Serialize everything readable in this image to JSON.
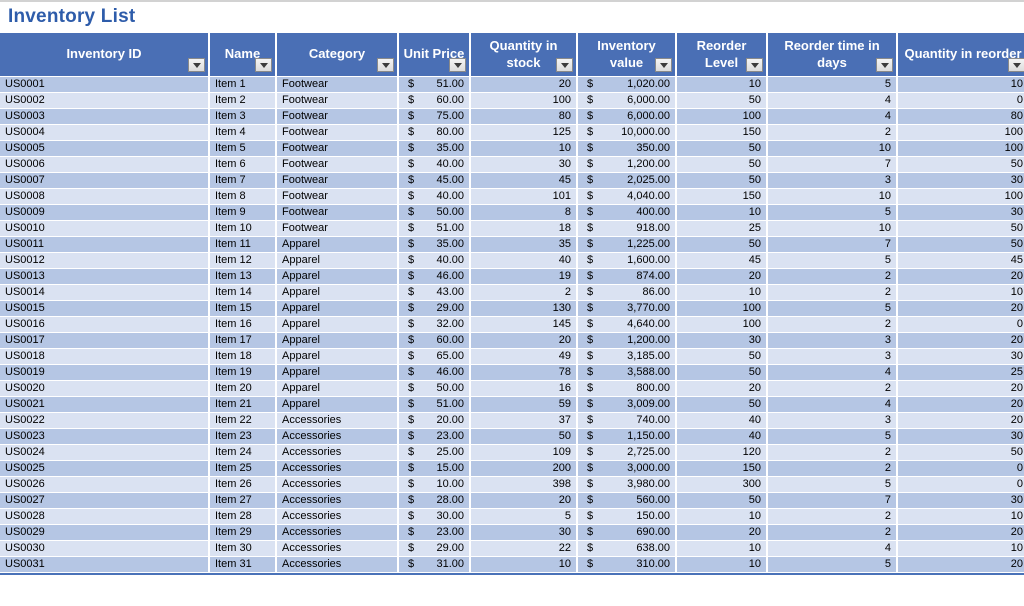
{
  "page": {
    "title": "Inventory List"
  },
  "colors": {
    "title_text": "#2E5CAA",
    "header_bg": "#4A6FB5",
    "band_dark": "#B5C6E4",
    "band_light": "#DAE2F2",
    "table_bottom_border": "#4A72B8",
    "flag_marker": "#C00000"
  },
  "icons": {
    "filter_dropdown": "chevron-down-icon"
  },
  "table": {
    "currency_symbol": "$",
    "columns": [
      {
        "key": "inventory_id",
        "label": "Inventory ID",
        "type": "text"
      },
      {
        "key": "name",
        "label": "Name",
        "type": "text"
      },
      {
        "key": "category",
        "label": "Category",
        "type": "text"
      },
      {
        "key": "unit_price",
        "label": "Unit Price",
        "type": "currency"
      },
      {
        "key": "qty_stock",
        "label": "Quantity in stock",
        "type": "number"
      },
      {
        "key": "inventory_value",
        "label": "Inventory value",
        "type": "currency"
      },
      {
        "key": "reorder_level",
        "label": "Reorder Level",
        "type": "number"
      },
      {
        "key": "reorder_days",
        "label": "Reorder time in days",
        "type": "number"
      },
      {
        "key": "qty_reorder",
        "label": "Quantity in reorder",
        "type": "number"
      }
    ],
    "rows": [
      {
        "inventory_id": "US0001",
        "name": "Item 1",
        "category": "Footwear",
        "unit_price": "51.00",
        "qty_stock": "20",
        "inventory_value": "1,020.00",
        "reorder_level": "10",
        "reorder_days": "5",
        "qty_reorder": "10"
      },
      {
        "inventory_id": "US0002",
        "name": "Item 2",
        "category": "Footwear",
        "unit_price": "60.00",
        "qty_stock": "100",
        "inventory_value": "6,000.00",
        "reorder_level": "50",
        "reorder_days": "4",
        "qty_reorder": "0"
      },
      {
        "inventory_id": "US0003",
        "name": "Item 3",
        "category": "Footwear",
        "unit_price": "75.00",
        "qty_stock": "80",
        "inventory_value": "6,000.00",
        "reorder_level": "100",
        "reorder_days": "4",
        "qty_reorder": "80"
      },
      {
        "inventory_id": "US0004",
        "name": "Item 4",
        "category": "Footwear",
        "unit_price": "80.00",
        "qty_stock": "125",
        "inventory_value": "10,000.00",
        "reorder_level": "150",
        "reorder_days": "2",
        "qty_reorder": "100"
      },
      {
        "inventory_id": "US0005",
        "name": "Item 5",
        "category": "Footwear",
        "unit_price": "35.00",
        "qty_stock": "10",
        "inventory_value": "350.00",
        "reorder_level": "50",
        "reorder_days": "10",
        "qty_reorder": "100"
      },
      {
        "inventory_id": "US0006",
        "name": "Item 6",
        "category": "Footwear",
        "unit_price": "40.00",
        "qty_stock": "30",
        "inventory_value": "1,200.00",
        "reorder_level": "50",
        "reorder_days": "7",
        "qty_reorder": "50"
      },
      {
        "inventory_id": "US0007",
        "name": "Item 7",
        "category": "Footwear",
        "unit_price": "45.00",
        "qty_stock": "45",
        "inventory_value": "2,025.00",
        "reorder_level": "50",
        "reorder_days": "3",
        "qty_reorder": "30"
      },
      {
        "inventory_id": "US0008",
        "name": "Item 8",
        "category": "Footwear",
        "unit_price": "40.00",
        "qty_stock": "101",
        "inventory_value": "4,040.00",
        "reorder_level": "150",
        "reorder_days": "10",
        "qty_reorder": "100"
      },
      {
        "inventory_id": "US0009",
        "name": "Item 9",
        "category": "Footwear",
        "unit_price": "50.00",
        "qty_stock": "8",
        "inventory_value": "400.00",
        "reorder_level": "10",
        "reorder_days": "5",
        "qty_reorder": "30"
      },
      {
        "inventory_id": "US0010",
        "name": "Item 10",
        "category": "Footwear",
        "unit_price": "51.00",
        "qty_stock": "18",
        "inventory_value": "918.00",
        "reorder_level": "25",
        "reorder_days": "10",
        "qty_reorder": "50"
      },
      {
        "inventory_id": "US0011",
        "name": "Item 11",
        "category": "Apparel",
        "unit_price": "35.00",
        "qty_stock": "35",
        "inventory_value": "1,225.00",
        "reorder_level": "50",
        "reorder_days": "7",
        "qty_reorder": "50"
      },
      {
        "inventory_id": "US0012",
        "name": "Item 12",
        "category": "Apparel",
        "unit_price": "40.00",
        "qty_stock": "40",
        "inventory_value": "1,600.00",
        "reorder_level": "45",
        "reorder_days": "5",
        "qty_reorder": "45"
      },
      {
        "inventory_id": "US0013",
        "name": "Item 13",
        "category": "Apparel",
        "unit_price": "46.00",
        "qty_stock": "19",
        "inventory_value": "874.00",
        "reorder_level": "20",
        "reorder_days": "2",
        "qty_reorder": "20"
      },
      {
        "inventory_id": "US0014",
        "name": "Item 14",
        "category": "Apparel",
        "unit_price": "43.00",
        "qty_stock": "2",
        "inventory_value": "86.00",
        "reorder_level": "10",
        "reorder_days": "2",
        "qty_reorder": "10"
      },
      {
        "inventory_id": "US0015",
        "name": "Item 15",
        "category": "Apparel",
        "unit_price": "29.00",
        "qty_stock": "130",
        "inventory_value": "3,770.00",
        "reorder_level": "100",
        "reorder_days": "5",
        "qty_reorder": "20"
      },
      {
        "inventory_id": "US0016",
        "name": "Item 16",
        "category": "Apparel",
        "unit_price": "32.00",
        "qty_stock": "145",
        "inventory_value": "4,640.00",
        "reorder_level": "100",
        "reorder_days": "2",
        "qty_reorder": "0"
      },
      {
        "inventory_id": "US0017",
        "name": "Item 17",
        "category": "Apparel",
        "unit_price": "60.00",
        "qty_stock": "20",
        "inventory_value": "1,200.00",
        "reorder_level": "30",
        "reorder_days": "3",
        "qty_reorder": "20"
      },
      {
        "inventory_id": "US0018",
        "name": "Item 18",
        "category": "Apparel",
        "unit_price": "65.00",
        "qty_stock": "49",
        "inventory_value": "3,185.00",
        "reorder_level": "50",
        "reorder_days": "3",
        "qty_reorder": "30"
      },
      {
        "inventory_id": "US0019",
        "name": "Item 19",
        "category": "Apparel",
        "unit_price": "46.00",
        "qty_stock": "78",
        "inventory_value": "3,588.00",
        "reorder_level": "50",
        "reorder_days": "4",
        "qty_reorder": "25"
      },
      {
        "inventory_id": "US0020",
        "name": "Item 20",
        "category": "Apparel",
        "unit_price": "50.00",
        "qty_stock": "16",
        "inventory_value": "800.00",
        "reorder_level": "20",
        "reorder_days": "2",
        "qty_reorder": "20"
      },
      {
        "inventory_id": "US0021",
        "name": "Item 21",
        "category": "Apparel",
        "unit_price": "51.00",
        "qty_stock": "59",
        "inventory_value": "3,009.00",
        "reorder_level": "50",
        "reorder_days": "4",
        "qty_reorder": "20"
      },
      {
        "inventory_id": "US0022",
        "name": "Item 22",
        "category": "Accessories",
        "unit_price": "20.00",
        "qty_stock": "37",
        "inventory_value": "740.00",
        "reorder_level": "40",
        "reorder_days": "3",
        "qty_reorder": "20"
      },
      {
        "inventory_id": "US0023",
        "name": "Item 23",
        "category": "Accessories",
        "unit_price": "23.00",
        "qty_stock": "50",
        "inventory_value": "1,150.00",
        "reorder_level": "40",
        "reorder_days": "5",
        "qty_reorder": "30"
      },
      {
        "inventory_id": "US0024",
        "name": "Item 24",
        "category": "Accessories",
        "unit_price": "25.00",
        "qty_stock": "109",
        "inventory_value": "2,725.00",
        "reorder_level": "120",
        "reorder_days": "2",
        "qty_reorder": "50"
      },
      {
        "inventory_id": "US0025",
        "name": "Item 25",
        "category": "Accessories",
        "unit_price": "15.00",
        "qty_stock": "200",
        "inventory_value": "3,000.00",
        "reorder_level": "150",
        "reorder_days": "2",
        "qty_reorder": "0"
      },
      {
        "inventory_id": "US0026",
        "name": "Item 26",
        "category": "Accessories",
        "unit_price": "10.00",
        "qty_stock": "398",
        "inventory_value": "3,980.00",
        "reorder_level": "300",
        "reorder_days": "5",
        "qty_reorder": "0"
      },
      {
        "inventory_id": "US0027",
        "name": "Item 27",
        "category": "Accessories",
        "unit_price": "28.00",
        "qty_stock": "20",
        "inventory_value": "560.00",
        "reorder_level": "50",
        "reorder_days": "7",
        "qty_reorder": "30"
      },
      {
        "inventory_id": "US0028",
        "name": "Item 28",
        "category": "Accessories",
        "unit_price": "30.00",
        "qty_stock": "5",
        "inventory_value": "150.00",
        "reorder_level": "10",
        "reorder_days": "2",
        "qty_reorder": "10"
      },
      {
        "inventory_id": "US0029",
        "name": "Item 29",
        "category": "Accessories",
        "unit_price": "23.00",
        "qty_stock": "30",
        "inventory_value": "690.00",
        "reorder_level": "20",
        "reorder_days": "2",
        "qty_reorder": "20"
      },
      {
        "inventory_id": "US0030",
        "name": "Item 30",
        "category": "Accessories",
        "unit_price": "29.00",
        "qty_stock": "22",
        "inventory_value": "638.00",
        "reorder_level": "10",
        "reorder_days": "4",
        "qty_reorder": "10"
      },
      {
        "inventory_id": "US0031",
        "name": "Item 31",
        "category": "Accessories",
        "unit_price": "31.00",
        "qty_stock": "10",
        "inventory_value": "310.00",
        "reorder_level": "10",
        "reorder_days": "5",
        "qty_reorder": "20"
      }
    ]
  }
}
